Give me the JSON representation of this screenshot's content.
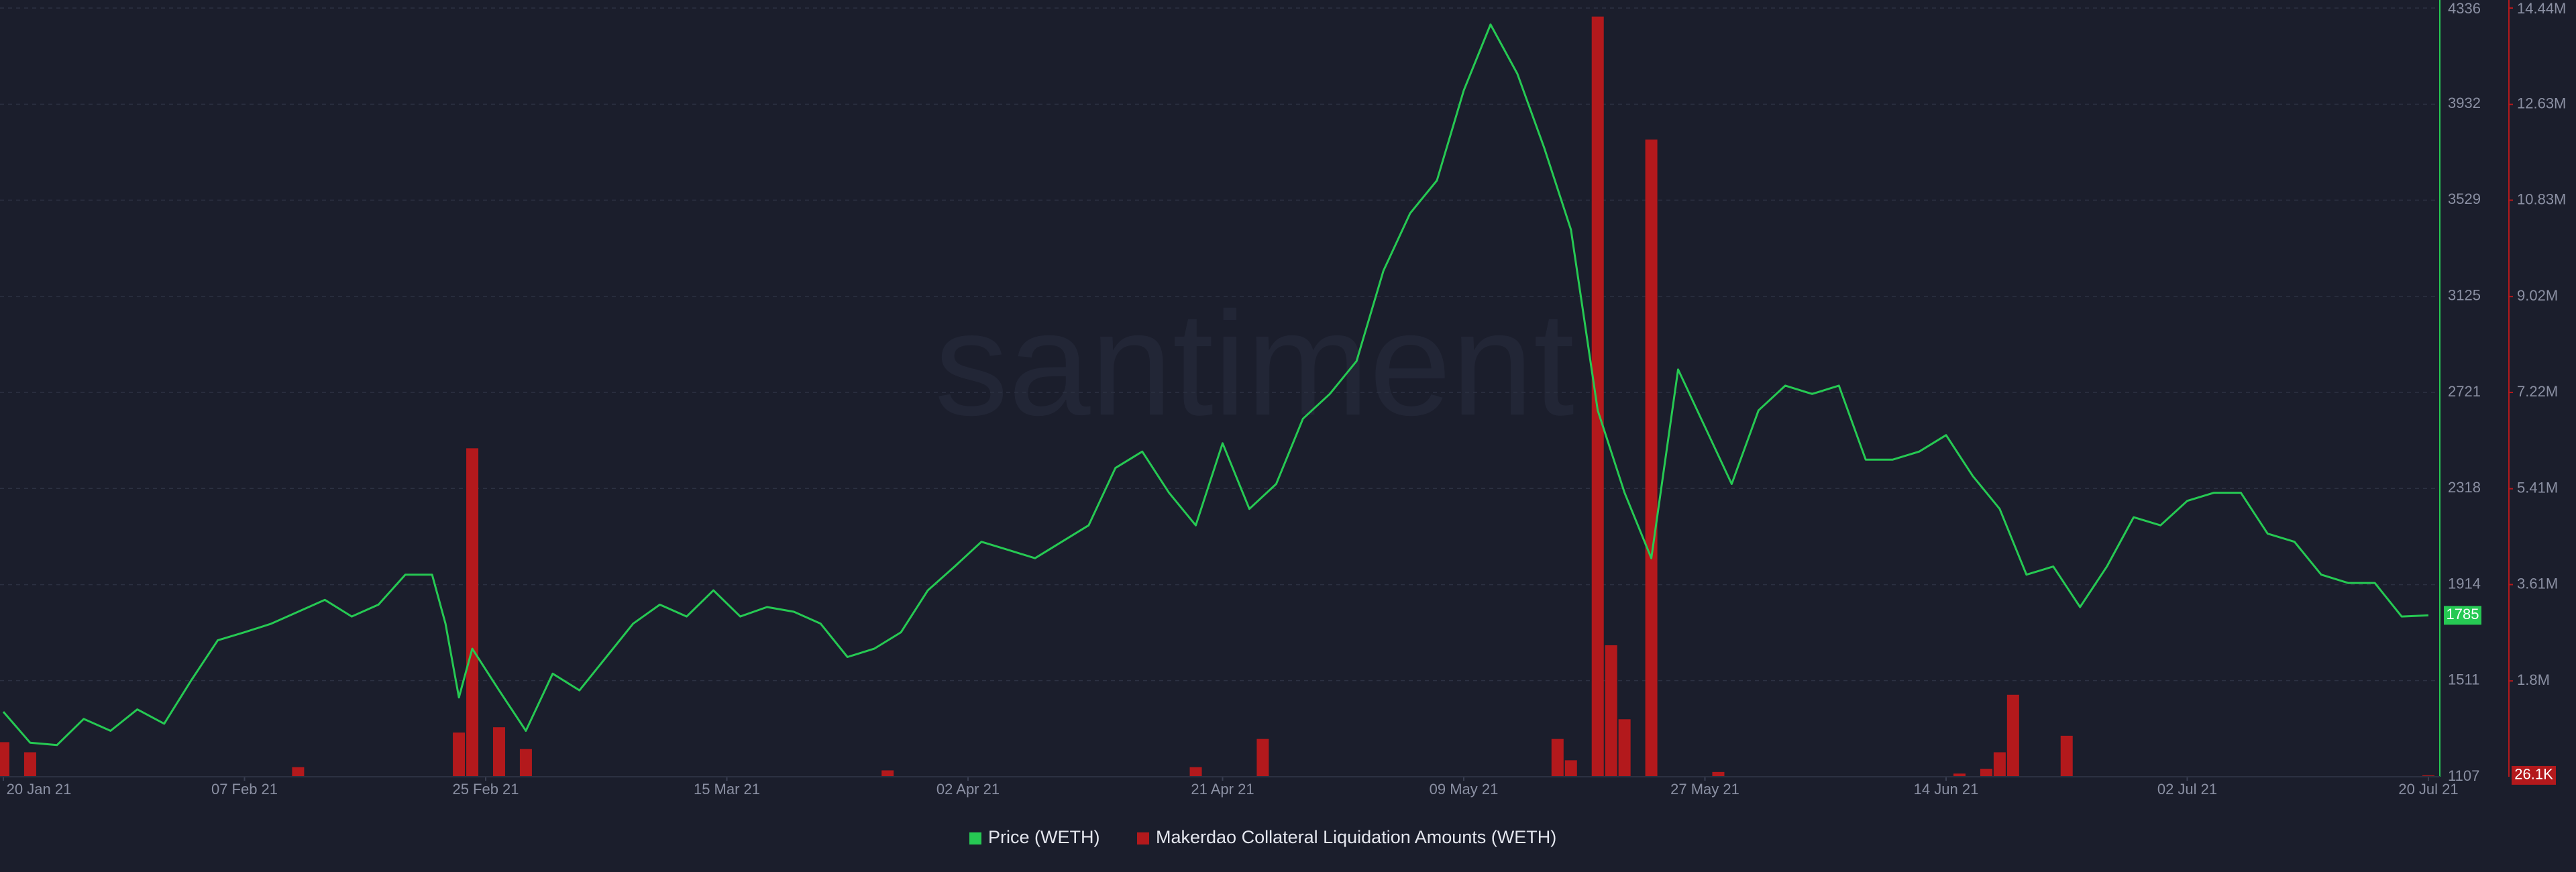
{
  "chart_data": {
    "type": "combo",
    "watermark": "santiment",
    "xlim": [
      "2021-01-20",
      "2021-07-20"
    ],
    "xticks": [
      {
        "value": "2021-01-20",
        "label": "20 Jan 21"
      },
      {
        "value": "2021-02-07",
        "label": "07 Feb 21"
      },
      {
        "value": "2021-02-25",
        "label": "25 Feb 21"
      },
      {
        "value": "2021-03-15",
        "label": "15 Mar 21"
      },
      {
        "value": "2021-04-02",
        "label": "02 Apr 21"
      },
      {
        "value": "2021-04-21",
        "label": "21 Apr 21"
      },
      {
        "value": "2021-05-09",
        "label": "09 May 21"
      },
      {
        "value": "2021-05-27",
        "label": "27 May 21"
      },
      {
        "value": "2021-06-14",
        "label": "14 Jun 21"
      },
      {
        "value": "2021-07-02",
        "label": "02 Jul 21"
      },
      {
        "value": "2021-07-20",
        "label": "20 Jul 21"
      }
    ],
    "ylim": [
      1107,
      4336
    ],
    "yticks": [
      1107,
      1511,
      1914,
      2318,
      2721,
      3125,
      3529,
      3932,
      4336
    ],
    "y2lim": [
      0,
      14440000
    ],
    "y2ticks": [
      {
        "value": 1800000,
        "label": "1.8M"
      },
      {
        "value": 3610000,
        "label": "3.61M"
      },
      {
        "value": 5410000,
        "label": "5.41M"
      },
      {
        "value": 7220000,
        "label": "7.22M"
      },
      {
        "value": 9020000,
        "label": "9.02M"
      },
      {
        "value": 10830000,
        "label": "10.83M"
      },
      {
        "value": 12630000,
        "label": "12.63M"
      },
      {
        "value": 14440000,
        "label": "14.44M"
      }
    ],
    "grid": true,
    "price_badge": 1785,
    "liquidation_badge": {
      "value": 26100,
      "label": "26.1K"
    },
    "series": [
      {
        "name": "Price (WETH)",
        "type": "line",
        "color": "#26c953",
        "x": [
          "2021-01-20",
          "2021-01-22",
          "2021-01-24",
          "2021-01-26",
          "2021-01-28",
          "2021-01-30",
          "2021-02-01",
          "2021-02-03",
          "2021-02-05",
          "2021-02-07",
          "2021-02-09",
          "2021-02-11",
          "2021-02-13",
          "2021-02-15",
          "2021-02-17",
          "2021-02-19",
          "2021-02-21",
          "2021-02-22",
          "2021-02-23",
          "2021-02-24",
          "2021-02-26",
          "2021-02-28",
          "2021-03-02",
          "2021-03-04",
          "2021-03-06",
          "2021-03-08",
          "2021-03-10",
          "2021-03-12",
          "2021-03-14",
          "2021-03-16",
          "2021-03-18",
          "2021-03-20",
          "2021-03-22",
          "2021-03-24",
          "2021-03-26",
          "2021-03-28",
          "2021-03-30",
          "2021-04-01",
          "2021-04-03",
          "2021-04-05",
          "2021-04-07",
          "2021-04-09",
          "2021-04-11",
          "2021-04-13",
          "2021-04-15",
          "2021-04-17",
          "2021-04-19",
          "2021-04-21",
          "2021-04-23",
          "2021-04-25",
          "2021-04-27",
          "2021-04-29",
          "2021-05-01",
          "2021-05-03",
          "2021-05-05",
          "2021-05-07",
          "2021-05-09",
          "2021-05-11",
          "2021-05-13",
          "2021-05-15",
          "2021-05-17",
          "2021-05-19",
          "2021-05-21",
          "2021-05-23",
          "2021-05-25",
          "2021-05-27",
          "2021-05-29",
          "2021-05-31",
          "2021-06-02",
          "2021-06-04",
          "2021-06-06",
          "2021-06-08",
          "2021-06-10",
          "2021-06-12",
          "2021-06-14",
          "2021-06-16",
          "2021-06-18",
          "2021-06-20",
          "2021-06-22",
          "2021-06-24",
          "2021-06-26",
          "2021-06-28",
          "2021-06-30",
          "2021-07-02",
          "2021-07-04",
          "2021-07-06",
          "2021-07-08",
          "2021-07-10",
          "2021-07-12",
          "2021-07-14",
          "2021-07-16",
          "2021-07-18",
          "2021-07-20"
        ],
        "values": [
          1380,
          1250,
          1240,
          1350,
          1300,
          1390,
          1330,
          1510,
          1680,
          1714,
          1750,
          1800,
          1850,
          1780,
          1830,
          1956,
          1956,
          1750,
          1440,
          1645,
          1470,
          1300,
          1540,
          1470,
          1610,
          1750,
          1830,
          1780,
          1890,
          1780,
          1820,
          1800,
          1750,
          1610,
          1645,
          1714,
          1890,
          1990,
          2094,
          2060,
          2025,
          2094,
          2163,
          2404,
          2473,
          2300,
          2163,
          2508,
          2232,
          2337,
          2611,
          2715,
          2853,
          3232,
          3474,
          3612,
          3990,
          4267,
          4060,
          3750,
          3405,
          2646,
          2300,
          2025,
          2818,
          2577,
          2337,
          2646,
          2750,
          2715,
          2750,
          2439,
          2439,
          2473,
          2542,
          2370,
          2232,
          1956,
          1990,
          1820,
          1990,
          2197,
          2163,
          2266,
          2300,
          2300,
          2128,
          2094,
          1956,
          1921,
          1921,
          1780,
          1785
        ]
      },
      {
        "name": "Makerdao Collateral Liquidation Amounts (WETH)",
        "type": "bar",
        "axis": "y2",
        "color": "#b3191c",
        "x": [
          "2021-01-20",
          "2021-01-22",
          "2021-02-11",
          "2021-02-23",
          "2021-02-24",
          "2021-02-26",
          "2021-02-28",
          "2021-03-27",
          "2021-04-19",
          "2021-04-24",
          "2021-05-16",
          "2021-05-17",
          "2021-05-19",
          "2021-05-20",
          "2021-05-21",
          "2021-05-23",
          "2021-05-28",
          "2021-06-15",
          "2021-06-17",
          "2021-06-18",
          "2021-06-19",
          "2021-06-23",
          "2021-07-20"
        ],
        "values": [
          650000,
          460000,
          180000,
          830000,
          6170000,
          930000,
          520000,
          120000,
          180000,
          710000,
          710000,
          310000,
          14280000,
          2470000,
          1080000,
          11970000,
          90000,
          60000,
          150000,
          460000,
          1540000,
          770000,
          26100
        ]
      }
    ]
  }
}
